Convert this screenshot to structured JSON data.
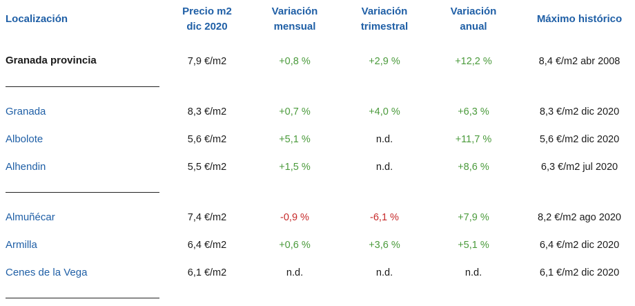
{
  "headers": {
    "location": "Localización",
    "price_l1": "Precio m2",
    "price_l2": "dic 2020",
    "monthly_l1": "Variación",
    "monthly_l2": "mensual",
    "quarterly_l1": "Variación",
    "quarterly_l2": "trimestral",
    "annual_l1": "Variación",
    "annual_l2": "anual",
    "max": "Máximo histórico"
  },
  "rows": [
    {
      "location": "Granada provincia",
      "price": "7,9 €/m2",
      "monthly": "+0,8 %",
      "quarterly": "+2,9 %",
      "annual": "+12,2 %",
      "max": "8,4 €/m2 abr 2008"
    },
    {
      "location": "Granada",
      "price": "8,3 €/m2",
      "monthly": "+0,7 %",
      "quarterly": "+4,0 %",
      "annual": "+6,3 %",
      "max": "8,3 €/m2 dic 2020"
    },
    {
      "location": "Albolote",
      "price": "5,6 €/m2",
      "monthly": "+5,1 %",
      "quarterly": "n.d.",
      "annual": "+11,7 %",
      "max": "5,6 €/m2 dic 2020"
    },
    {
      "location": "Alhendin",
      "price": "5,5 €/m2",
      "monthly": "+1,5 %",
      "quarterly": "n.d.",
      "annual": "+8,6 %",
      "max": "6,3 €/m2 jul 2020"
    },
    {
      "location": "Almuñécar",
      "price": "7,4 €/m2",
      "monthly": "-0,9 %",
      "quarterly": "-6,1 %",
      "annual": "+7,9 %",
      "max": "8,2 €/m2 ago 2020"
    },
    {
      "location": "Armilla",
      "price": "6,4 €/m2",
      "monthly": "+0,6 %",
      "quarterly": "+3,6 %",
      "annual": "+5,1 %",
      "max": "6,4 €/m2 dic 2020"
    },
    {
      "location": "Cenes de la Vega",
      "price": "6,1 €/m2",
      "monthly": "n.d.",
      "quarterly": "n.d.",
      "annual": "n.d.",
      "max": "6,1 €/m2 dic 2020"
    }
  ],
  "colors": {
    "link": "#1f5fa6",
    "positive": "#4a9a3b",
    "negative": "#c62828"
  }
}
